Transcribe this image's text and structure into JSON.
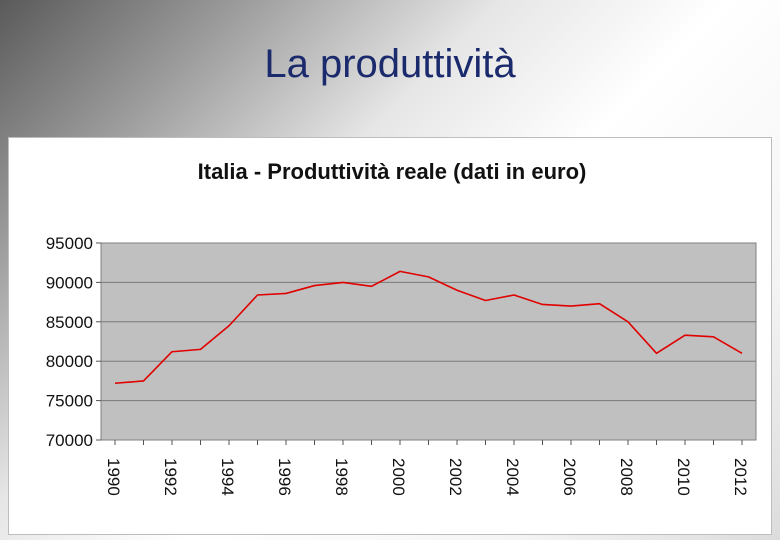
{
  "slide": {
    "title": "La produttività"
  },
  "chart_data": {
    "type": "line",
    "title": "Italia - Produttività reale (dati in euro)",
    "xlabel": "",
    "ylabel": "",
    "x": [
      1990,
      1991,
      1992,
      1993,
      1994,
      1995,
      1996,
      1997,
      1998,
      1999,
      2000,
      2001,
      2002,
      2003,
      2004,
      2005,
      2006,
      2007,
      2008,
      2009,
      2010,
      2011,
      2012
    ],
    "x_tick_labels": [
      "1990",
      "1992",
      "1994",
      "1996",
      "1998",
      "2000",
      "2002",
      "2004",
      "2006",
      "2008",
      "2010",
      "2012"
    ],
    "y_tick_labels": [
      "95000",
      "90000",
      "85000",
      "80000",
      "75000",
      "70000"
    ],
    "ylim": [
      70000,
      95000
    ],
    "grid": true,
    "legend": "none",
    "plot_background": "#c0c0c0",
    "series": [
      {
        "color": "#e00000",
        "values": [
          77200,
          77500,
          81200,
          81500,
          84500,
          88400,
          88600,
          89600,
          90000,
          89500,
          91400,
          90700,
          89000,
          87700,
          88400,
          87200,
          87000,
          87300,
          85000,
          81000,
          83300,
          83100,
          81000
        ]
      }
    ]
  }
}
